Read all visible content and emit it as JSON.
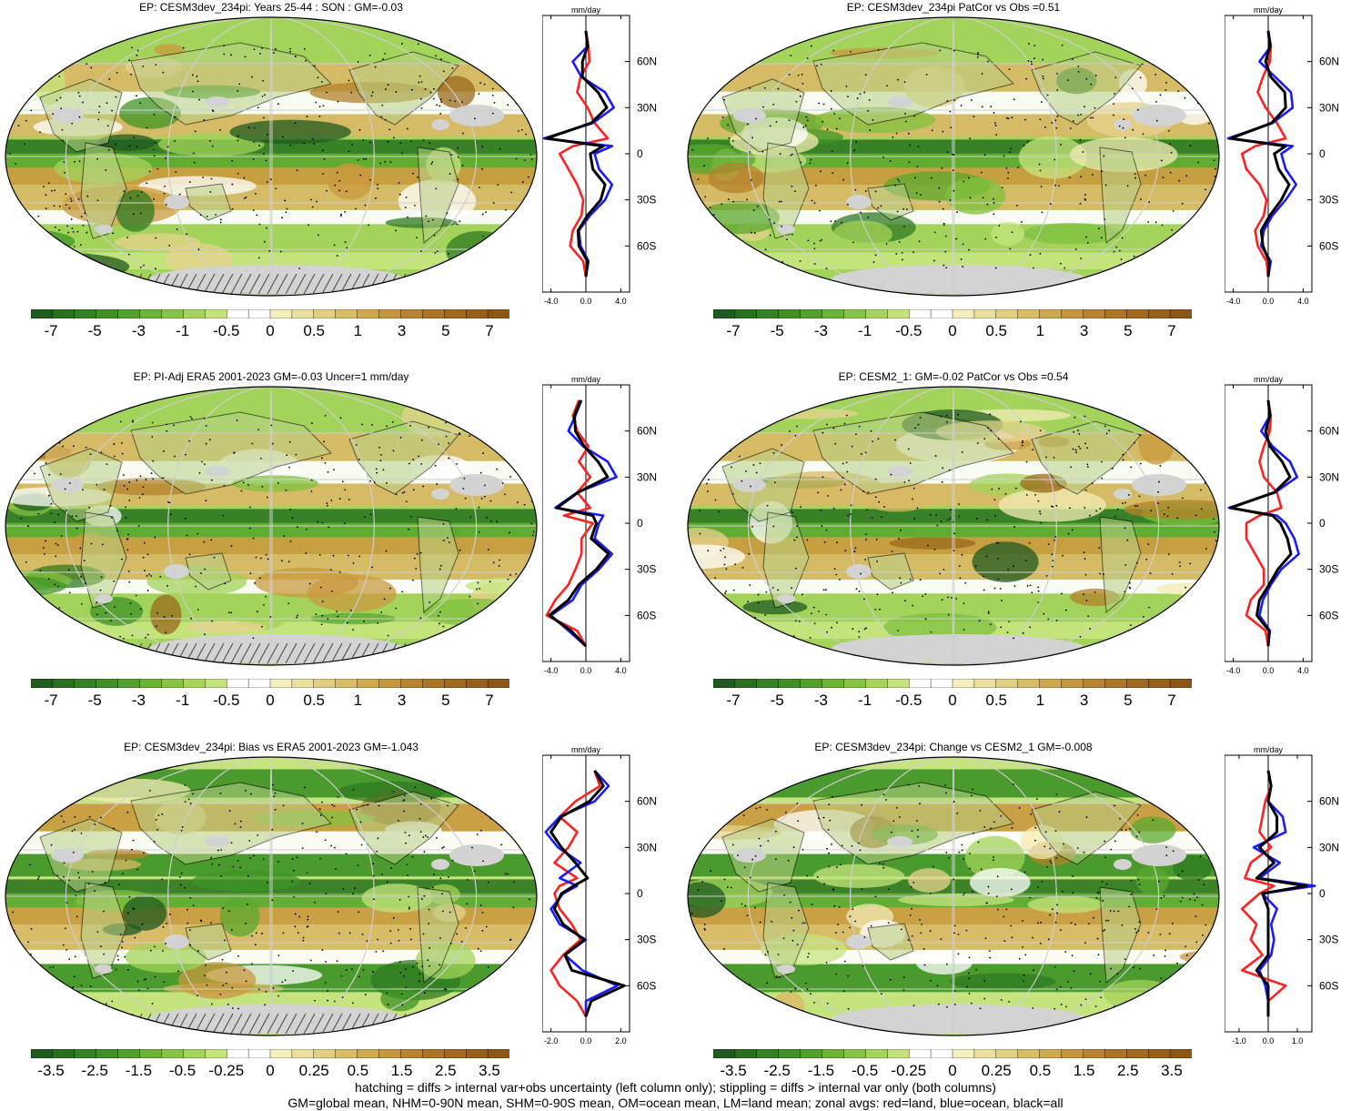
{
  "colors": {
    "palette": [
      "#1f5a1f",
      "#2f7a22",
      "#3f9426",
      "#5aa82e",
      "#7fc03e",
      "#a3d35a",
      "#c5e47e",
      "#ffffff",
      "#ffffff",
      "#f3ecb4",
      "#e7d38e",
      "#d9b866",
      "#c99a3e",
      "#b3822a",
      "#9a6a1c"
    ],
    "land": "#d3d3d3",
    "red": "#ff2020",
    "blue": "#1a1aff",
    "black": "#000000"
  },
  "colorbar_labels_a": [
    "-7",
    "-5",
    "-3",
    "-1",
    "-0.5",
    "0",
    "0.5",
    "1",
    "3",
    "5",
    "7"
  ],
  "colorbar_labels_b": [
    "-3.5",
    "-2.5",
    "-1.5",
    "-0.5",
    "-0.25",
    "0",
    "0.25",
    "0.5",
    "1.5",
    "2.5",
    "3.5"
  ],
  "zonal_lat_labels": [
    "60N",
    "30N",
    "0",
    "30S",
    "60S"
  ],
  "zonal_unit": "mm/day",
  "panels": [
    {
      "title": "EP: CESM3dev_234pi: Years 25-44 : SON : GM=-0.03",
      "x_ticks": [
        "-4.0",
        "0.0",
        "4.0"
      ],
      "colorbar": "a"
    },
    {
      "title": "EP: CESM3dev_234pi PatCor vs Obs =0.51",
      "x_ticks": [
        "-4.0",
        "0.0",
        "4.0"
      ],
      "colorbar": "a"
    },
    {
      "title": "EP: PI-Adj ERA5 2001-2023 GM=-0.03 Uncer=1 mm/day",
      "x_ticks": [
        "-4.0",
        "0.0",
        "4.0"
      ],
      "colorbar": "a"
    },
    {
      "title": "EP: CESM2_1: GM=-0.02 PatCor vs Obs =0.54",
      "x_ticks": [
        "-4.0",
        "0.0",
        "4.0"
      ],
      "colorbar": "a"
    },
    {
      "title": "EP: CESM3dev_234pi: Bias vs ERA5 2001-2023  GM=-1.043",
      "x_ticks": [
        "-2.0",
        "0.0",
        "2.0"
      ],
      "colorbar": "b"
    },
    {
      "title": "EP: CESM3dev_234pi: Change vs CESM2_1 GM=-0.008",
      "x_ticks": [
        "-1.0",
        "0.0",
        "1.0"
      ],
      "colorbar": "b"
    }
  ],
  "footer": {
    "line1": "hatching = diffs > internal var+obs uncertainty (left column only); stippling = diffs > internal var only (both columns)",
    "line2": "GM=global mean, NHM=0-90N mean, SHM=0-90S mean, OM=ocean mean, LM=land mean; zonal avgs: red=land, blue=ocean, black=all"
  },
  "chart_data": [
    {
      "type": "line",
      "title": "EP: CESM3dev_234pi: Years 25-44 : SON : GM=-0.03",
      "xlabel": "mm/day",
      "xlim": [
        -5,
        5
      ],
      "ylim": [
        -90,
        90
      ],
      "x_ticks": [
        -4,
        0,
        4
      ],
      "y_ticks": [
        "60N",
        "30N",
        "0",
        "30S",
        "60S"
      ],
      "lat": [
        80,
        70,
        60,
        50,
        40,
        30,
        20,
        10,
        5,
        0,
        -10,
        -20,
        -30,
        -40,
        -50,
        -60,
        -70,
        -80
      ],
      "series": [
        {
          "name": "land",
          "color": "red",
          "values": [
            0,
            0.3,
            0.4,
            -0.6,
            -1.0,
            0.2,
            1.0,
            2.5,
            -1.5,
            -3.0,
            -2.0,
            -1.0,
            -0.3,
            -0.5,
            -1.5,
            -1.8,
            -0.3,
            0
          ]
        },
        {
          "name": "ocean",
          "color": "blue",
          "values": [
            0,
            0.2,
            -1.5,
            -0.5,
            2.2,
            3.2,
            0.8,
            -4.8,
            3.0,
            1.0,
            1.5,
            3.0,
            2.2,
            0.5,
            -0.8,
            -0.6,
            0.3,
            0
          ]
        },
        {
          "name": "all",
          "color": "black",
          "values": [
            0,
            0.2,
            -0.4,
            -0.4,
            1.4,
            2.4,
            0.6,
            -4.5,
            2.0,
            0.5,
            0.8,
            2.2,
            1.7,
            0.2,
            -0.9,
            -0.8,
            0.2,
            0
          ]
        }
      ]
    },
    {
      "type": "line",
      "title": "EP: CESM3dev_234pi PatCor vs Obs =0.51",
      "xlabel": "mm/day",
      "xlim": [
        -5,
        5
      ],
      "ylim": [
        -90,
        90
      ],
      "x_ticks": [
        -4,
        0,
        4
      ],
      "y_ticks": [
        "60N",
        "30N",
        "0",
        "30S",
        "60S"
      ],
      "lat": [
        80,
        70,
        60,
        50,
        40,
        30,
        20,
        10,
        5,
        0,
        -10,
        -20,
        -30,
        -40,
        -50,
        -60,
        -70,
        -80
      ],
      "series": [
        {
          "name": "land",
          "color": "red",
          "values": [
            0,
            0.3,
            0.2,
            -0.6,
            -1.2,
            -0.3,
            1.0,
            2.0,
            -1.5,
            -3.0,
            -2.5,
            -1.0,
            -0.2,
            -0.5,
            -1.5,
            -1.2,
            -0.2,
            0
          ]
        },
        {
          "name": "ocean",
          "color": "blue",
          "values": [
            0,
            0.3,
            -1.0,
            0.8,
            2.6,
            2.8,
            0.5,
            -4.6,
            2.8,
            1.5,
            2.0,
            3.2,
            2.0,
            0.5,
            -0.5,
            -0.8,
            0.3,
            0
          ]
        },
        {
          "name": "all",
          "color": "black",
          "values": [
            0,
            0.2,
            -0.3,
            0.3,
            1.9,
            2.0,
            0.4,
            -4.3,
            2.0,
            0.7,
            1.2,
            2.4,
            1.5,
            0.2,
            -0.8,
            -0.6,
            0.1,
            0
          ]
        }
      ]
    },
    {
      "type": "line",
      "title": "EP: PI-Adj ERA5 2001-2023 GM=-0.03 Uncer=1 mm/day",
      "xlabel": "mm/day",
      "xlim": [
        -5,
        5
      ],
      "ylim": [
        -90,
        90
      ],
      "x_ticks": [
        -4,
        0,
        4
      ],
      "y_ticks": [
        "60N",
        "30N",
        "0",
        "30S",
        "60S"
      ],
      "lat": [
        80,
        70,
        60,
        50,
        40,
        30,
        20,
        10,
        5,
        0,
        -10,
        -20,
        -30,
        -40,
        -50,
        -60,
        -70,
        -80
      ],
      "series": [
        {
          "name": "land",
          "color": "red",
          "values": [
            -0.8,
            -1.5,
            -1.0,
            0.3,
            -0.8,
            0.5,
            -1.0,
            0.5,
            -2.5,
            0.8,
            -0.5,
            -0.5,
            -1.2,
            -2.0,
            -3.5,
            -4.5,
            -1.0,
            0
          ]
        },
        {
          "name": "ocean",
          "color": "blue",
          "values": [
            -0.5,
            -1.2,
            -2.0,
            -0.3,
            2.5,
            3.5,
            -1.0,
            -3.5,
            2.0,
            1.5,
            1.0,
            3.0,
            1.5,
            -0.5,
            -1.5,
            -4.0,
            -2.0,
            0
          ]
        },
        {
          "name": "all",
          "color": "black",
          "values": [
            -0.6,
            -1.3,
            -1.2,
            -0.2,
            1.4,
            2.5,
            -0.9,
            -3.3,
            0.8,
            1.2,
            0.6,
            2.6,
            1.2,
            -0.8,
            -2.0,
            -4.2,
            -1.7,
            0
          ]
        }
      ]
    },
    {
      "type": "line",
      "title": "EP: CESM2_1: GM=-0.02 PatCor vs Obs =0.54",
      "xlabel": "mm/day",
      "xlim": [
        -5,
        5
      ],
      "ylim": [
        -90,
        90
      ],
      "x_ticks": [
        -4,
        0,
        4
      ],
      "y_ticks": [
        "60N",
        "30N",
        "0",
        "30S",
        "60S"
      ],
      "lat": [
        80,
        70,
        60,
        50,
        40,
        30,
        20,
        10,
        5,
        0,
        -10,
        -20,
        -30,
        -40,
        -50,
        -60,
        -70,
        -80
      ],
      "series": [
        {
          "name": "land",
          "color": "red",
          "values": [
            0,
            0.3,
            0.2,
            -0.5,
            -1.0,
            -0.5,
            1.0,
            1.5,
            -1.0,
            -2.5,
            -2.5,
            -1.5,
            -0.5,
            -0.5,
            -2.0,
            -2.5,
            -0.3,
            0
          ]
        },
        {
          "name": "ocean",
          "color": "blue",
          "values": [
            0,
            0.2,
            -0.8,
            0.5,
            2.5,
            3.3,
            0.8,
            -4.5,
            1.0,
            2.0,
            3.0,
            3.5,
            1.5,
            0.3,
            -0.6,
            -1.0,
            0.2,
            0
          ]
        },
        {
          "name": "all",
          "color": "black",
          "values": [
            0,
            0.2,
            -0.3,
            0.2,
            1.6,
            2.5,
            0.7,
            -4.3,
            0.5,
            1.4,
            2.2,
            2.6,
            1.1,
            0.1,
            -1.0,
            -1.3,
            0.1,
            0
          ]
        }
      ]
    },
    {
      "type": "line",
      "title": "EP: CESM3dev_234pi: Bias vs ERA5 2001-2023  GM=-1.043",
      "xlabel": "mm/day",
      "xlim": [
        -2.5,
        2.5
      ],
      "ylim": [
        -90,
        90
      ],
      "x_ticks": [
        -2,
        0,
        2
      ],
      "y_ticks": [
        "60N",
        "30N",
        "0",
        "30S",
        "60S"
      ],
      "lat": [
        80,
        70,
        60,
        50,
        40,
        30,
        20,
        10,
        5,
        0,
        -10,
        -20,
        -30,
        -40,
        -50,
        -60,
        -70,
        -80
      ],
      "series": [
        {
          "name": "land",
          "color": "red",
          "values": [
            0.5,
            0.8,
            -0.6,
            -1.5,
            -0.5,
            -1.0,
            -1.8,
            -0.5,
            -1.5,
            -1.8,
            -1.5,
            -0.8,
            -0.3,
            -1.3,
            -2.0,
            -1.5,
            -0.5,
            0
          ]
        },
        {
          "name": "ocean",
          "color": "blue",
          "values": [
            0.5,
            1.3,
            0.5,
            -1.5,
            -2.3,
            -1.6,
            -0.3,
            -1.5,
            -0.5,
            -1.3,
            -2.0,
            -1.5,
            0,
            -1.2,
            -0.2,
            1.8,
            0,
            0
          ]
        },
        {
          "name": "all",
          "color": "black",
          "values": [
            0.5,
            1.0,
            0.2,
            -1.4,
            -2.0,
            -1.4,
            -0.6,
            0.1,
            -0.7,
            -1.4,
            -1.8,
            -1.3,
            -0.1,
            -1.2,
            -0.8,
            2.2,
            0.3,
            0
          ]
        }
      ]
    },
    {
      "type": "line",
      "title": "EP: CESM3dev_234pi: Change vs CESM2_1 GM=-0.008",
      "xlabel": "mm/day",
      "xlim": [
        -1.5,
        1.5
      ],
      "ylim": [
        -90,
        90
      ],
      "x_ticks": [
        -1,
        0,
        1
      ],
      "y_ticks": [
        "60N",
        "30N",
        "0",
        "30S",
        "60S"
      ],
      "lat": [
        80,
        70,
        60,
        50,
        40,
        30,
        20,
        10,
        5,
        0,
        -10,
        -20,
        -30,
        -40,
        -50,
        -60,
        -70,
        -80
      ],
      "series": [
        {
          "name": "land",
          "color": "red",
          "values": [
            0,
            0.1,
            -0.1,
            -0.2,
            -0.3,
            0.1,
            -0.6,
            -0.8,
            0.2,
            -0.3,
            -0.9,
            -0.4,
            -0.6,
            -0.2,
            -0.9,
            0.6,
            0,
            0
          ]
        },
        {
          "name": "ocean",
          "color": "blue",
          "values": [
            0,
            0.1,
            0,
            0.5,
            0.6,
            -0.5,
            0.4,
            -0.3,
            1.6,
            -0.2,
            0.3,
            0.1,
            0.2,
            0.1,
            -0.3,
            -0.1,
            0,
            0
          ]
        },
        {
          "name": "all",
          "color": "black",
          "values": [
            0,
            0.1,
            0,
            0.3,
            0.3,
            -0.3,
            0.2,
            -0.4,
            1.3,
            -0.2,
            0,
            0,
            0,
            0,
            -0.4,
            0,
            0,
            0
          ]
        }
      ]
    }
  ]
}
